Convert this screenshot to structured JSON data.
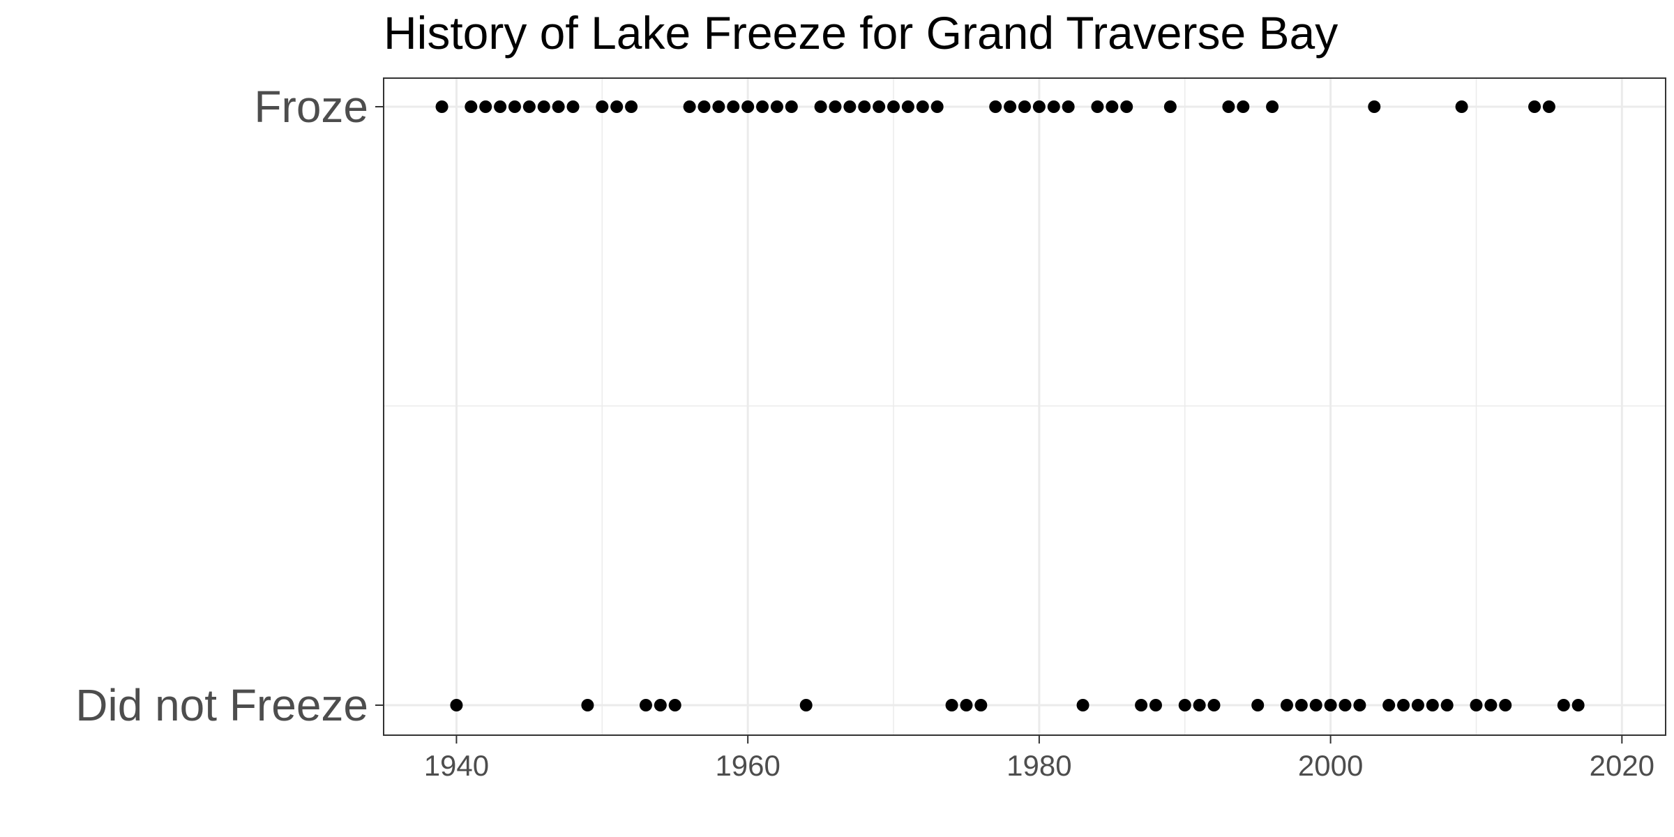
{
  "chart_data": {
    "type": "scatter",
    "title": "History of Lake Freeze for Grand Traverse Bay",
    "xlabel": "",
    "ylabel": "",
    "xlim": [
      1935,
      2023
    ],
    "x_ticks": [
      1940,
      1960,
      1980,
      2000,
      2020
    ],
    "x_tick_labels": [
      "1940",
      "1960",
      "1980",
      "2000",
      "2020"
    ],
    "categories": [
      "Did not Freeze",
      "Froze"
    ],
    "grid": true,
    "point_color": "#000000",
    "grid_color": "#ebebeb",
    "series": [
      {
        "category": "Froze",
        "x": [
          1939,
          1941,
          1942,
          1943,
          1944,
          1945,
          1946,
          1947,
          1948,
          1950,
          1951,
          1952,
          1956,
          1957,
          1958,
          1959,
          1960,
          1961,
          1962,
          1963,
          1965,
          1966,
          1967,
          1968,
          1969,
          1970,
          1971,
          1972,
          1973,
          1977,
          1978,
          1979,
          1980,
          1981,
          1982,
          1984,
          1985,
          1986,
          1989,
          1993,
          1994,
          1996,
          2003,
          2009,
          2014,
          2015
        ]
      },
      {
        "category": "Did not Freeze",
        "x": [
          1940,
          1949,
          1953,
          1954,
          1955,
          1964,
          1974,
          1975,
          1976,
          1983,
          1987,
          1988,
          1990,
          1991,
          1992,
          1995,
          1997,
          1998,
          1999,
          2000,
          2001,
          2002,
          2004,
          2005,
          2006,
          2007,
          2008,
          2010,
          2011,
          2012,
          2016,
          2017
        ]
      }
    ]
  }
}
